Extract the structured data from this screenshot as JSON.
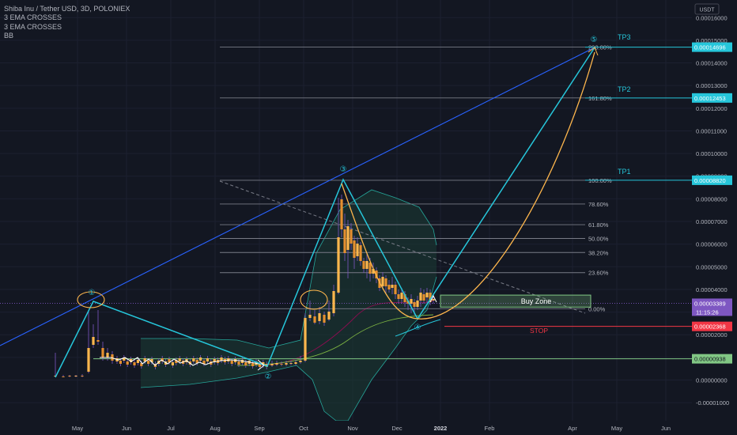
{
  "header": {
    "symbol_line": "Shiba Inu / Tether USD, 3D, POLONIEX",
    "indicators": [
      "3 EMA CROSSES",
      "3 EMA CROSSES",
      "BB"
    ]
  },
  "currency_badge": "USDT",
  "colors": {
    "background": "#131722",
    "grid": "#1c2030",
    "axis_text": "#b2b5be",
    "fib_text": "#b2b5be",
    "cyan": "#26c6da",
    "blue_trend": "#2962ff",
    "orange": "#ffb74d",
    "green_zone": "#81c784",
    "red_stop": "#f23645",
    "purple_price": "#7e57c2",
    "candle_up": "#ffb74d",
    "candle_down": "#ffb74d",
    "bb_fill": "#1b3d35"
  },
  "chart_data": {
    "type": "candlestick",
    "y_axis_ticks": [
      "0.00016000",
      "0.00015000",
      "0.00014000",
      "0.00013000",
      "0.00012000",
      "0.00011000",
      "0.00010000",
      "0.00009000",
      "0.00008000",
      "0.00007000",
      "0.00006000",
      "0.00005000",
      "0.00004000",
      "0.00003000",
      "0.00002000",
      "0.00001000",
      "0.00000000",
      "-0.00001000"
    ],
    "y_range": [
      -1.25e-05,
      0.0001666
    ],
    "x_axis_ticks": [
      "May",
      "Jun",
      "Jul",
      "Aug",
      "Sep",
      "Oct",
      "Nov",
      "Dec",
      "2022",
      "Feb",
      "Apr",
      "May",
      "Jun"
    ],
    "price_labels": [
      {
        "text": "0.00014696",
        "value": 0.00014696,
        "color": "#26c6da"
      },
      {
        "text": "0.00012453",
        "value": 0.00012453,
        "color": "#26c6da"
      },
      {
        "text": "0.00008820",
        "value": 8.82e-05,
        "color": "#26c6da"
      },
      {
        "text": "0.00003389",
        "value": 3.389e-05,
        "color": "#7e57c2",
        "countdown": "11:15:26"
      },
      {
        "text": "0.00002368",
        "value": 2.368e-05,
        "color": "#f23645"
      },
      {
        "text": "0.00000938",
        "value": 9.38e-06,
        "color": "#81c784"
      }
    ],
    "fib_levels": [
      {
        "label": "200.00%",
        "value": 0.00014696
      },
      {
        "label": "161.80%",
        "value": 0.00012453
      },
      {
        "label": "100.00%",
        "value": 8.82e-05
      },
      {
        "label": "78.60%",
        "value": 7.77e-05
      },
      {
        "label": "61.80%",
        "value": 6.86e-05
      },
      {
        "label": "50.00%",
        "value": 6.25e-05
      },
      {
        "label": "38.20%",
        "value": 5.63e-05
      },
      {
        "label": "23.60%",
        "value": 4.74e-05
      },
      {
        "label": "0.00%",
        "value": 3.15e-05
      }
    ],
    "targets": [
      {
        "label": "TP3",
        "value": 0.00014696
      },
      {
        "label": "TP2",
        "value": 0.00012453
      },
      {
        "label": "TP1",
        "value": 8.82e-05
      }
    ],
    "wave_labels": [
      "①",
      "②",
      "③",
      "④",
      "⑤"
    ],
    "buy_zone": {
      "label": "Buy Zone",
      "top": 3.75e-05,
      "bottom": 3.22e-05
    },
    "stop": {
      "label": "STOP",
      "value": 2.368e-05
    },
    "support": {
      "value": 9.38e-06
    }
  }
}
